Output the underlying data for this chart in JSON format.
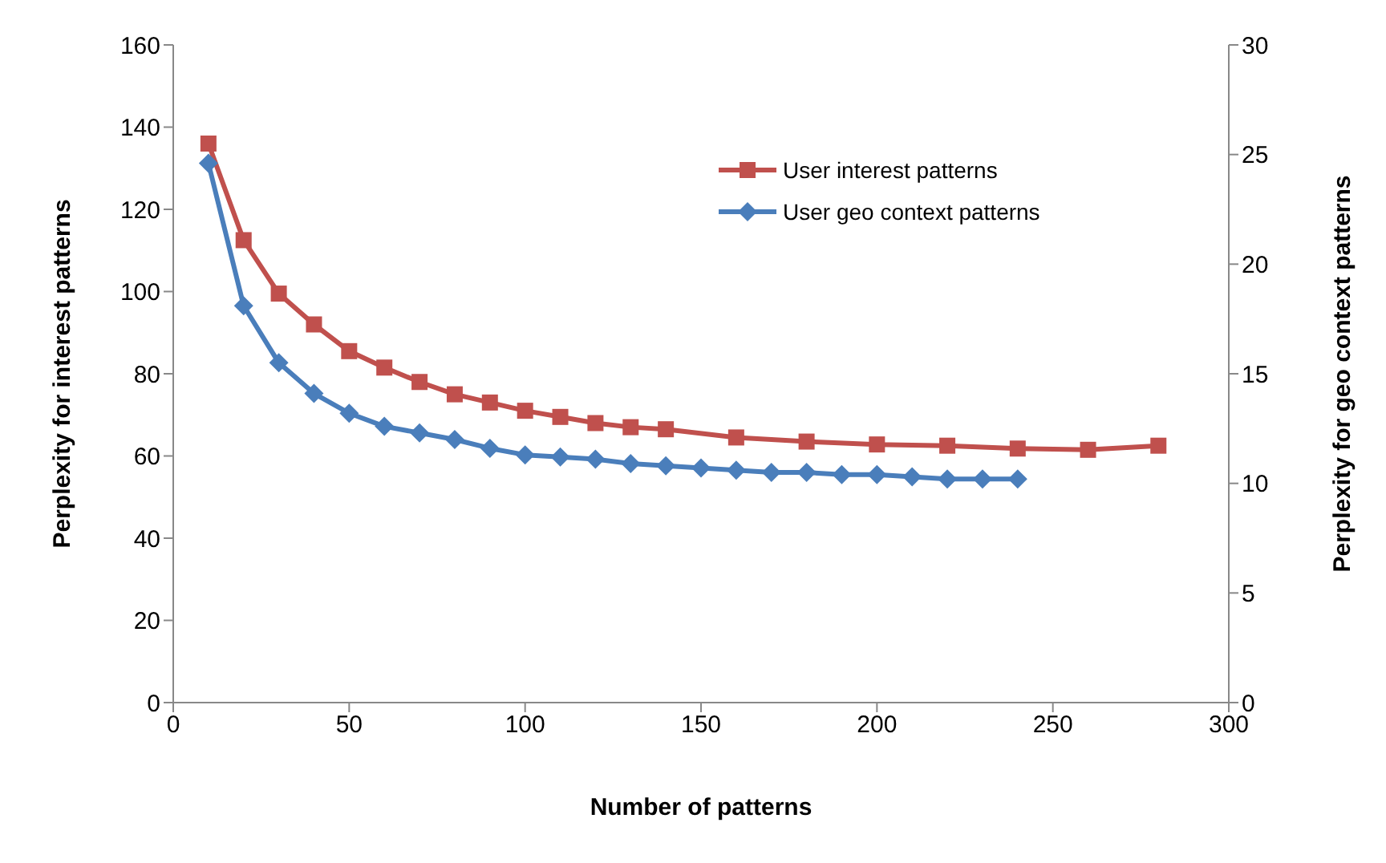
{
  "chart_data": {
    "type": "line",
    "xlabel": "Number of patterns",
    "ylabel": "Perplexity for interest patterns",
    "y2label": "Perplexity for geo context patterns",
    "xlim": [
      0,
      300
    ],
    "xticks": [
      0,
      50,
      100,
      150,
      200,
      250,
      300
    ],
    "ylim": [
      0,
      160
    ],
    "yticks": [
      0,
      20,
      40,
      60,
      80,
      100,
      120,
      140,
      160
    ],
    "y2lim": [
      0,
      30
    ],
    "y2ticks": [
      0,
      5,
      10,
      15,
      20,
      25,
      30
    ],
    "grid": false,
    "legend": "top right",
    "series": [
      {
        "name": "User interest patterns",
        "color": "#c0504d",
        "marker": "square",
        "x": [
          10,
          20,
          30,
          40,
          50,
          60,
          70,
          80,
          90,
          100,
          110,
          120,
          130,
          140,
          160,
          180,
          200,
          220,
          240,
          260,
          280
        ],
        "values": [
          136,
          112.5,
          99.5,
          92,
          85.5,
          81.5,
          78,
          75,
          73,
          71,
          69.5,
          68,
          67,
          66.5,
          64.5,
          63.5,
          62.8,
          62.5,
          61.8,
          61.5,
          62.5
        ]
      },
      {
        "name": "User geo context patterns",
        "color": "#4a7ebb",
        "marker": "diamond",
        "axis": "y2",
        "x": [
          10,
          20,
          30,
          40,
          50,
          60,
          70,
          80,
          90,
          100,
          110,
          120,
          130,
          140,
          150,
          160,
          170,
          180,
          190,
          200,
          210,
          220,
          230,
          240
        ],
        "values": [
          24.6,
          18.1,
          15.5,
          14.1,
          13.2,
          12.6,
          12.3,
          12.0,
          11.6,
          11.3,
          11.2,
          11.1,
          10.9,
          10.8,
          10.7,
          10.6,
          10.5,
          10.5,
          10.4,
          10.4,
          10.3,
          10.2,
          10.2,
          10.2
        ]
      }
    ]
  }
}
